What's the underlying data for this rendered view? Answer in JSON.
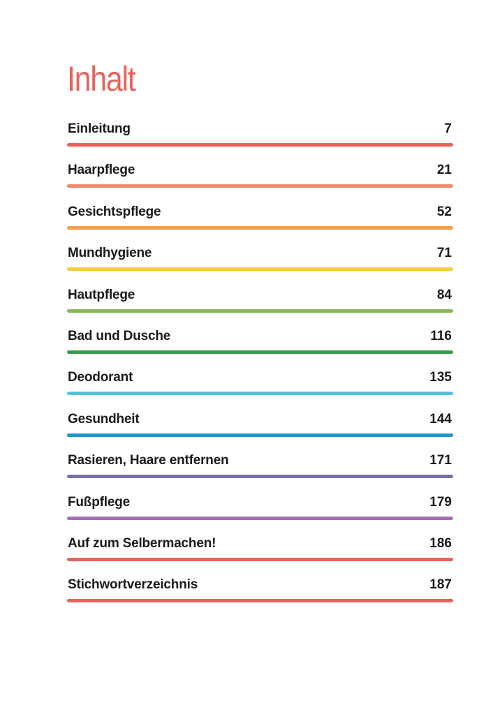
{
  "heading": "Inhalt",
  "colors": {
    "heading": "#e8635c",
    "text": "#1a1a1a"
  },
  "entries": [
    {
      "title": "Einleitung",
      "page": "7",
      "color": "#e8635c"
    },
    {
      "title": "Haarpflege",
      "page": "21",
      "color": "#ef8a6a"
    },
    {
      "title": "Gesichtspflege",
      "page": "52",
      "color": "#f2a04a"
    },
    {
      "title": "Mundhygiene",
      "page": "71",
      "color": "#f4cc3c"
    },
    {
      "title": "Hautpflege",
      "page": "84",
      "color": "#86bb57"
    },
    {
      "title": "Bad und Dusche",
      "page": "116",
      "color": "#3d9a50"
    },
    {
      "title": "Deodorant",
      "page": "135",
      "color": "#55c0d8"
    },
    {
      "title": "Gesundheit",
      "page": "144",
      "color": "#1e96c8"
    },
    {
      "title": "Rasieren, Haare entfernen",
      "page": "171",
      "color": "#7b70ad"
    },
    {
      "title": "Fußpflege",
      "page": "179",
      "color": "#a56fb2"
    },
    {
      "title": "Auf zum Selbermachen!",
      "page": "186",
      "color": "#e8635c"
    },
    {
      "title": "Stichwortverzeichnis",
      "page": "187",
      "color": "#e8635c"
    }
  ]
}
